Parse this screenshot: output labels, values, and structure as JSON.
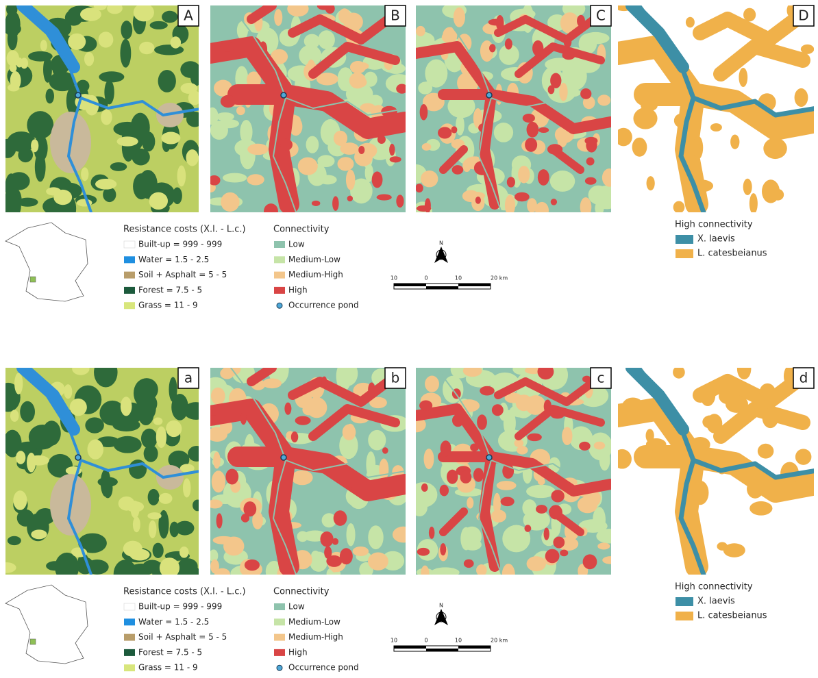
{
  "rows": [
    {
      "panels": [
        "A",
        "B",
        "C",
        "D"
      ],
      "resistance": {
        "title": "Resistance costs (X.l. - L.c.)",
        "items": [
          "Built-up = 999 - 999",
          "Water = 1.5 - 2.5",
          "Soil + Asphalt = 5 - 5",
          "Forest = 7.5 - 5",
          "Grass = 11 - 9"
        ]
      },
      "connectivity": {
        "title": "Connectivity",
        "items": [
          "Low",
          "Medium-Low",
          "Medium-High",
          "High",
          "Occurrence pond"
        ]
      },
      "scale": [
        "10",
        "0",
        "10",
        "20 km"
      ],
      "north": "N",
      "high": {
        "title": "High connectivity",
        "items": [
          "X. laevis",
          "L. catesbeianus"
        ]
      }
    },
    {
      "panels": [
        "a",
        "b",
        "c",
        "d"
      ],
      "resistance": {
        "title": "Resistance costs (X.l. - L.c.)",
        "items": [
          "Built-up = 999 - 999",
          "Water = 1.5 - 2.5",
          "Soil + Asphalt = 5 - 5",
          "Forest = 7.5 - 5",
          "Grass = 11 - 9"
        ]
      },
      "connectivity": {
        "title": "Connectivity",
        "items": [
          "Low",
          "Medium-Low",
          "Medium-High",
          "High",
          "Occurrence pond"
        ]
      },
      "scale": [
        "10",
        "0",
        "10",
        "20 km"
      ],
      "north": "N",
      "high": {
        "title": "High connectivity",
        "items": [
          "X. laevis",
          "L. catesbeianus"
        ]
      }
    }
  ]
}
